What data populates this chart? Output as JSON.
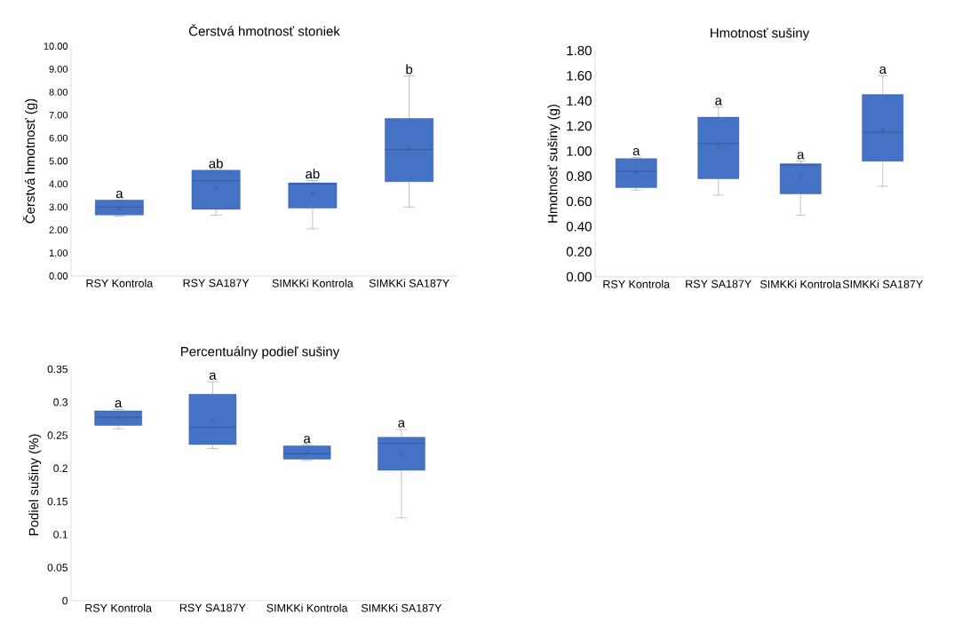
{
  "chart_data": [
    {
      "type": "box",
      "title": "Čerstvá hmotnosť stoniek",
      "ylabel": "Čerstvá hmotnosť (g)",
      "color": "#4472c4",
      "categories": [
        "RSY Kontrola",
        "RSY SA187Y",
        "SIMKKi Kontrola",
        "SIMKKi SA187Y"
      ],
      "boxes": [
        {
          "low": 2.6,
          "q1": 2.65,
          "median": 3.0,
          "q3": 3.3,
          "high": 3.3,
          "mean": 2.95
        },
        {
          "low": 2.65,
          "q1": 2.9,
          "median": 4.15,
          "q3": 4.6,
          "high": 4.6,
          "mean": 3.8
        },
        {
          "low": 2.05,
          "q1": 2.95,
          "median": 4.0,
          "q3": 4.05,
          "high": 4.15,
          "mean": 3.6
        },
        {
          "low": 3.0,
          "q1": 4.1,
          "median": 5.5,
          "q3": 6.85,
          "high": 8.7,
          "mean": 5.55
        }
      ],
      "ylim": [
        0,
        10
      ],
      "yticks": [
        {
          "value": 0,
          "label": "0.00"
        },
        {
          "value": 1,
          "label": "1.00"
        },
        {
          "value": 2,
          "label": "2.00"
        },
        {
          "value": 3,
          "label": "3.00"
        },
        {
          "value": 4,
          "label": "4.00"
        },
        {
          "value": 5,
          "label": "5.00"
        },
        {
          "value": 6,
          "label": "6.00"
        },
        {
          "value": 7,
          "label": "7.00"
        },
        {
          "value": 8,
          "label": "8.00"
        },
        {
          "value": 9,
          "label": "9.00"
        },
        {
          "value": 10,
          "label": "10.00"
        }
      ],
      "annotations": [
        "a",
        "ab",
        "ab",
        "b"
      ]
    },
    {
      "type": "box",
      "title": "Hmotnosť sušiny",
      "ylabel": "Hmotnosť sušiny (g)",
      "color": "#4472c4",
      "categories": [
        "RSY Kontrola",
        "RSY SA187Y",
        "SIMKKi Kontrola",
        "SIMKKi SA187Y"
      ],
      "boxes": [
        {
          "low": 0.69,
          "q1": 0.71,
          "median": 0.84,
          "q3": 0.94,
          "high": 0.95,
          "mean": 0.83
        },
        {
          "low": 0.65,
          "q1": 0.78,
          "median": 1.06,
          "q3": 1.27,
          "high": 1.35,
          "mean": 1.04
        },
        {
          "low": 0.49,
          "q1": 0.66,
          "median": 0.89,
          "q3": 0.9,
          "high": 0.92,
          "mean": 0.8
        },
        {
          "low": 0.72,
          "q1": 0.92,
          "median": 1.15,
          "q3": 1.45,
          "high": 1.6,
          "mean": 1.17
        }
      ],
      "ylim": [
        0,
        1.8
      ],
      "yticks": [
        {
          "value": 0,
          "label": "0.00"
        },
        {
          "value": 0.2,
          "label": "0.20"
        },
        {
          "value": 0.4,
          "label": "0.40"
        },
        {
          "value": 0.6,
          "label": "0.60"
        },
        {
          "value": 0.8,
          "label": "0.80"
        },
        {
          "value": 1.0,
          "label": "1.00"
        },
        {
          "value": 1.2,
          "label": "1.20"
        },
        {
          "value": 1.4,
          "label": "1.40"
        },
        {
          "value": 1.6,
          "label": "1.60"
        },
        {
          "value": 1.8,
          "label": "1.80"
        }
      ],
      "annotations": [
        "a",
        "a",
        "a",
        "a"
      ]
    },
    {
      "type": "box",
      "title": "Percentuálny podieľ sušiny",
      "ylabel": "Podiel sušiny (%)",
      "color": "#4472c4",
      "categories": [
        "RSY Kontrola",
        "RSY SA187Y",
        "SIMKKi Kontrola",
        "SIMKKi SA187Y"
      ],
      "boxes": [
        {
          "low": 0.26,
          "q1": 0.265,
          "median": 0.277,
          "q3": 0.287,
          "high": 0.289,
          "mean": 0.276
        },
        {
          "low": 0.23,
          "q1": 0.236,
          "median": 0.262,
          "q3": 0.312,
          "high": 0.331,
          "mean": 0.272
        },
        {
          "low": 0.212,
          "q1": 0.214,
          "median": 0.222,
          "q3": 0.234,
          "high": 0.235,
          "mean": 0.224
        },
        {
          "low": 0.125,
          "q1": 0.197,
          "median": 0.238,
          "q3": 0.247,
          "high": 0.259,
          "mean": 0.22
        }
      ],
      "ylim": [
        0,
        0.35
      ],
      "yticks": [
        0,
        0.05,
        0.1,
        0.15,
        0.2,
        0.25,
        0.3,
        0.35
      ],
      "annotations": [
        "a",
        "a",
        "a",
        "a"
      ]
    }
  ]
}
